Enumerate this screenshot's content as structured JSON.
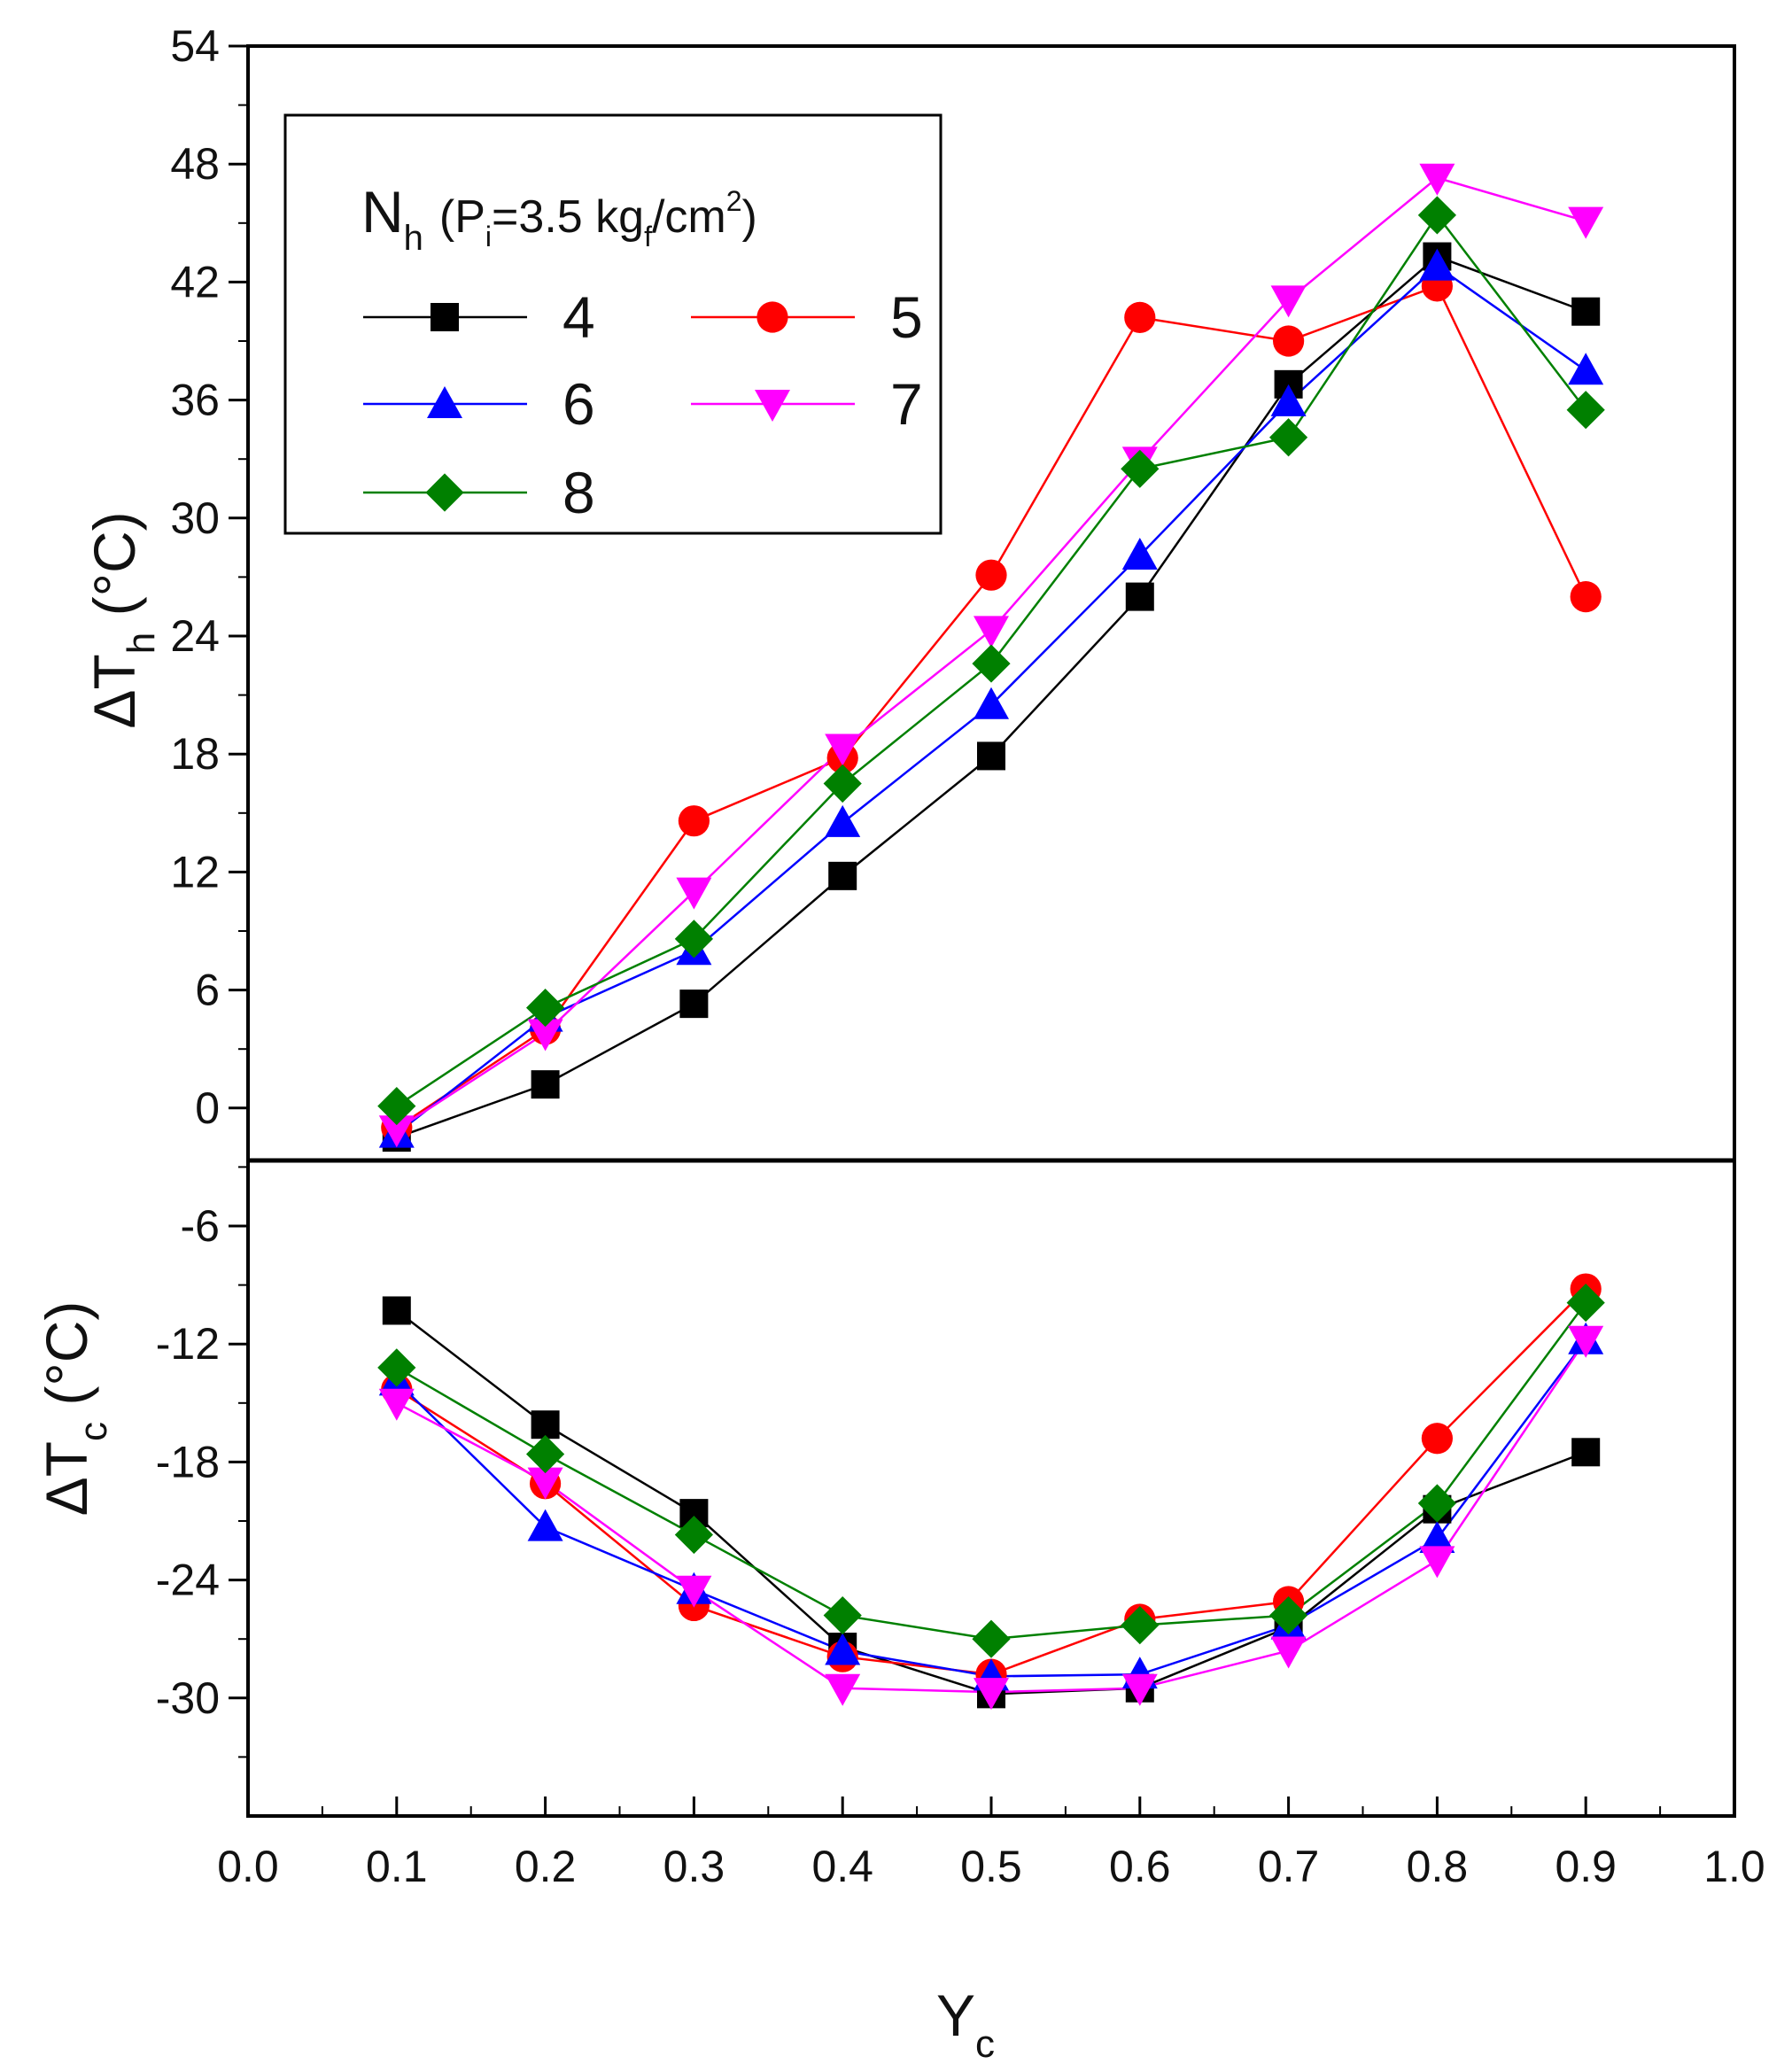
{
  "chart_data": {
    "type": "line",
    "legend_title": {
      "main": "N",
      "main_sub": "h",
      "cond_prefix": "(P",
      "cond_sub": "i",
      "cond_value": "=3.5 kg",
      "cond_sub2": "f",
      "cond_unit": "/cm",
      "cond_sup": "2",
      "cond_suffix": ")"
    },
    "xlabel": {
      "main": "Y",
      "sub": "c"
    },
    "ylabel_top": {
      "prefix": "ΔT",
      "sub": "h",
      "suffix": " (°C)"
    },
    "ylabel_bottom": {
      "prefix": "ΔT",
      "sub": "c",
      "suffix": " (°C)"
    },
    "xlim": [
      0.0,
      1.0
    ],
    "ylim": [
      -36,
      54
    ],
    "xticks": [
      "0.0",
      "0.1",
      "0.2",
      "0.3",
      "0.4",
      "0.5",
      "0.6",
      "0.7",
      "0.8",
      "0.9",
      "1.0"
    ],
    "yticks": [
      "54",
      "48",
      "42",
      "36",
      "30",
      "24",
      "18",
      "12",
      "6",
      "0",
      "-6",
      "-12",
      "-18",
      "-24",
      "-30"
    ],
    "x": [
      0.1,
      0.2,
      0.3,
      0.4,
      0.5,
      0.6,
      0.7,
      0.8,
      0.9
    ],
    "series": [
      {
        "name": "4",
        "color": "#000000",
        "marker": "square",
        "hot": [
          -1.5,
          1.2,
          5.3,
          11.8,
          17.9,
          26.0,
          36.8,
          43.3,
          40.5
        ],
        "cold": [
          -10.3,
          -16.1,
          -20.6,
          -27.4,
          -29.8,
          -29.5,
          -26.4,
          -20.4,
          -17.5
        ]
      },
      {
        "name": "5",
        "color": "#ff0000",
        "marker": "circle",
        "hot": [
          -1.0,
          4.0,
          14.6,
          17.8,
          27.1,
          40.2,
          39.0,
          41.8,
          26.0
        ],
        "cold": [
          -14.3,
          -19.1,
          -25.3,
          -27.9,
          -28.8,
          -26.0,
          -25.1,
          -16.8,
          -9.2
        ]
      },
      {
        "name": "6",
        "color": "#0000ff",
        "marker": "triangle-up",
        "hot": [
          -1.3,
          4.6,
          8.0,
          14.5,
          20.5,
          28.1,
          35.9,
          42.8,
          37.5
        ],
        "cold": [
          -13.9,
          -21.3,
          -24.5,
          -27.6,
          -28.9,
          -28.8,
          -26.3,
          -21.9,
          -11.8
        ]
      },
      {
        "name": "7",
        "color": "#ff00ff",
        "marker": "triangle-down",
        "hot": [
          -1.1,
          3.8,
          11.0,
          18.3,
          24.3,
          32.9,
          41.1,
          47.3,
          45.1
        ],
        "cold": [
          -15.0,
          -19.0,
          -24.5,
          -29.5,
          -29.7,
          -29.5,
          -27.6,
          -23.0,
          -11.8
        ]
      },
      {
        "name": "8",
        "color": "#008000",
        "marker": "diamond",
        "hot": [
          0.1,
          5.1,
          8.6,
          16.5,
          22.6,
          32.5,
          34.1,
          45.4,
          35.5
        ],
        "cold": [
          -13.2,
          -17.6,
          -21.7,
          -25.8,
          -27.0,
          -26.3,
          -25.8,
          -20.1,
          -9.9
        ]
      }
    ]
  }
}
